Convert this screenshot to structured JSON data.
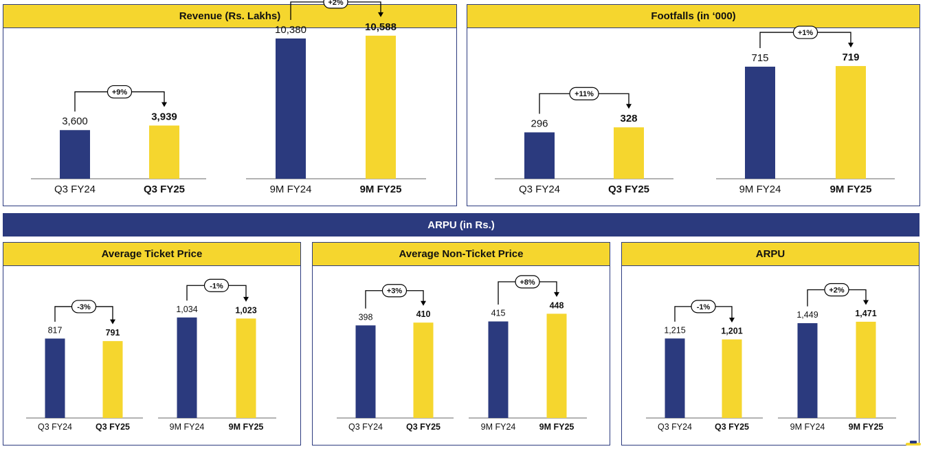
{
  "colors": {
    "prior": "#2b3a7e",
    "current": "#f5d62e",
    "text": "#111111",
    "axis": "#666666"
  },
  "banner": "ARPU (in Rs.)",
  "chart_data": [
    {
      "id": "revenue",
      "type": "bar",
      "title": "Revenue (Rs. Lakhs)",
      "ymax": 11600,
      "groups": [
        {
          "categories": [
            "Q3 FY24",
            "Q3 FY25"
          ],
          "values": [
            3600,
            3939
          ],
          "labels": [
            "3,600",
            "3,939"
          ],
          "change": "+9%"
        },
        {
          "categories": [
            "9M FY24",
            "9M FY25"
          ],
          "values": [
            10380,
            10588
          ],
          "labels": [
            "10,380",
            "10,588"
          ],
          "change": "+2%"
        }
      ]
    },
    {
      "id": "footfalls",
      "type": "bar",
      "title": "Footfalls (in ‘000)",
      "ymax": 1000,
      "groups": [
        {
          "categories": [
            "Q3 FY24",
            "Q3 FY25"
          ],
          "values": [
            296,
            328
          ],
          "labels": [
            "296",
            "328"
          ],
          "change": "+11%"
        },
        {
          "categories": [
            "9M FY24",
            "9M FY25"
          ],
          "values": [
            715,
            719
          ],
          "labels": [
            "715",
            "719"
          ],
          "change": "+1%"
        }
      ]
    },
    {
      "id": "atp",
      "type": "bar",
      "title": "Average Ticket Price",
      "ymax": 1400,
      "groups": [
        {
          "categories": [
            "Q3 FY24",
            "Q3 FY25"
          ],
          "values": [
            817,
            791
          ],
          "labels": [
            "817",
            "791"
          ],
          "change": "-3%"
        },
        {
          "categories": [
            "9M FY24",
            "9M FY25"
          ],
          "values": [
            1034,
            1023
          ],
          "labels": [
            "1,034",
            "1,023"
          ],
          "change": "-1%"
        }
      ]
    },
    {
      "id": "antp",
      "type": "bar",
      "title": "Average Non-Ticket Price",
      "ymax": 585,
      "groups": [
        {
          "categories": [
            "Q3 FY24",
            "Q3 FY25"
          ],
          "values": [
            398,
            410
          ],
          "labels": [
            "398",
            "410"
          ],
          "change": "+3%"
        },
        {
          "categories": [
            "9M FY24",
            "9M FY25"
          ],
          "values": [
            415,
            448
          ],
          "labels": [
            "415",
            "448"
          ],
          "change": "+8%"
        }
      ]
    },
    {
      "id": "arpu",
      "type": "bar",
      "title": "ARPU",
      "ymax": 2080,
      "groups": [
        {
          "categories": [
            "Q3 FY24",
            "Q3 FY25"
          ],
          "values": [
            1215,
            1201
          ],
          "labels": [
            "1,215",
            "1,201"
          ],
          "change": "-1%"
        },
        {
          "categories": [
            "9M FY24",
            "9M FY25"
          ],
          "values": [
            1449,
            1471
          ],
          "labels": [
            "1,449",
            "1,471"
          ],
          "change": "+2%"
        }
      ]
    }
  ]
}
